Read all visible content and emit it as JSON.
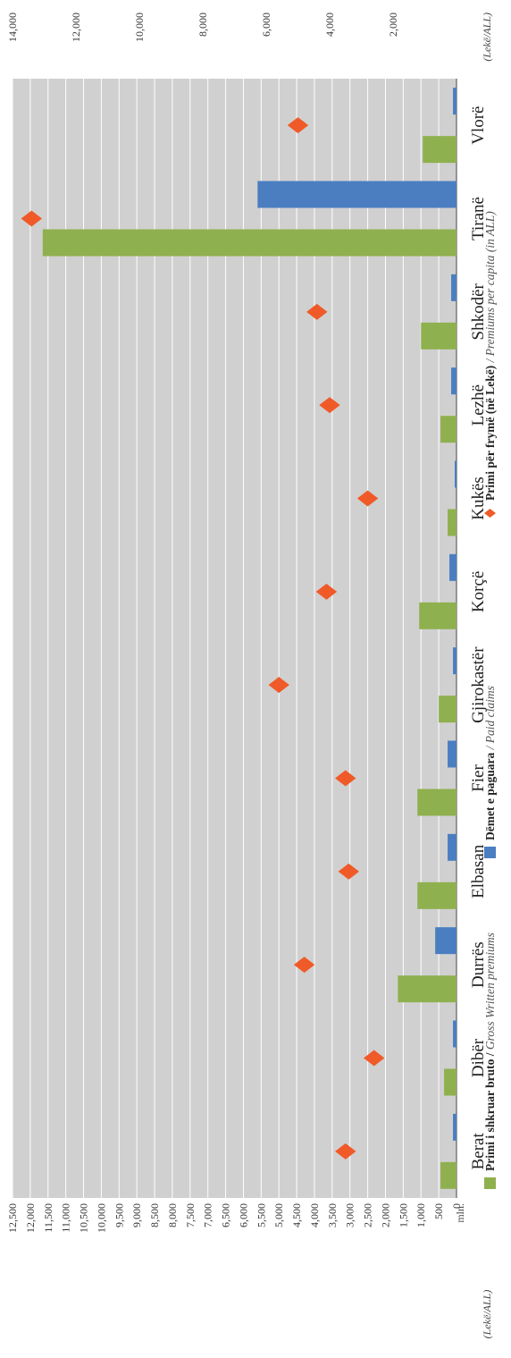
{
  "chart_data": {
    "type": "bar",
    "orientation": "rotated-90",
    "categories": [
      "Berat",
      "Dibër",
      "Durrës",
      "Elbasan",
      "Fier",
      "Gjirokastër",
      "Korçë",
      "Kukës",
      "Lezhë",
      "Shkodër",
      "Tiranë",
      "Vlorë"
    ],
    "series": [
      {
        "name_bold": "Primi i shkruar bruto /",
        "name_italic": "Gross Written premiums",
        "kind": "bar",
        "axis": "left",
        "color": "#8fb04e",
        "values": [
          450,
          350,
          1650,
          1100,
          1100,
          500,
          1050,
          250,
          450,
          1000,
          11650,
          950
        ]
      },
      {
        "name_bold": "Dëmet e paguara",
        "name_italic": "Paid claims",
        "kind": "bar",
        "axis": "left",
        "color": "#4a7ec1",
        "values": [
          100,
          100,
          600,
          250,
          250,
          100,
          200,
          50,
          150,
          150,
          5600,
          100
        ]
      },
      {
        "name_bold": "Primi për frymë (në Lekë)",
        "name_italic": "Premiums per capita (in ALL)",
        "kind": "diamond",
        "axis": "right",
        "color": "#f05a28",
        "values": [
          3500,
          2600,
          4800,
          3400,
          3500,
          5600,
          4100,
          2800,
          4000,
          4400,
          13400,
          5000
        ]
      }
    ],
    "left_axis": {
      "unit_line1": "mln.",
      "unit_line2": "(Lekë/ALL)",
      "ticks": [
        "0",
        "500",
        "1,000",
        "1,500",
        "2,000",
        "2,500",
        "3,000",
        "3,500",
        "4,000",
        "4,500",
        "5,000",
        "5,500",
        "6,000",
        "6,500",
        "7,000",
        "7,500",
        "8,000",
        "8,500",
        "9,000",
        "9,500",
        "10,000",
        "10,500",
        "11,000",
        "11,500",
        "12,000",
        "12,500"
      ],
      "range": [
        0,
        12500
      ]
    },
    "right_axis": {
      "unit": "(Lekë/ALL)",
      "ticks": [
        "2,000",
        "4,000",
        "6,000",
        "8,000",
        "10,000",
        "12,000",
        "14,000"
      ],
      "range": [
        0,
        14000
      ]
    },
    "grid": true,
    "legend_position": "bottom"
  }
}
